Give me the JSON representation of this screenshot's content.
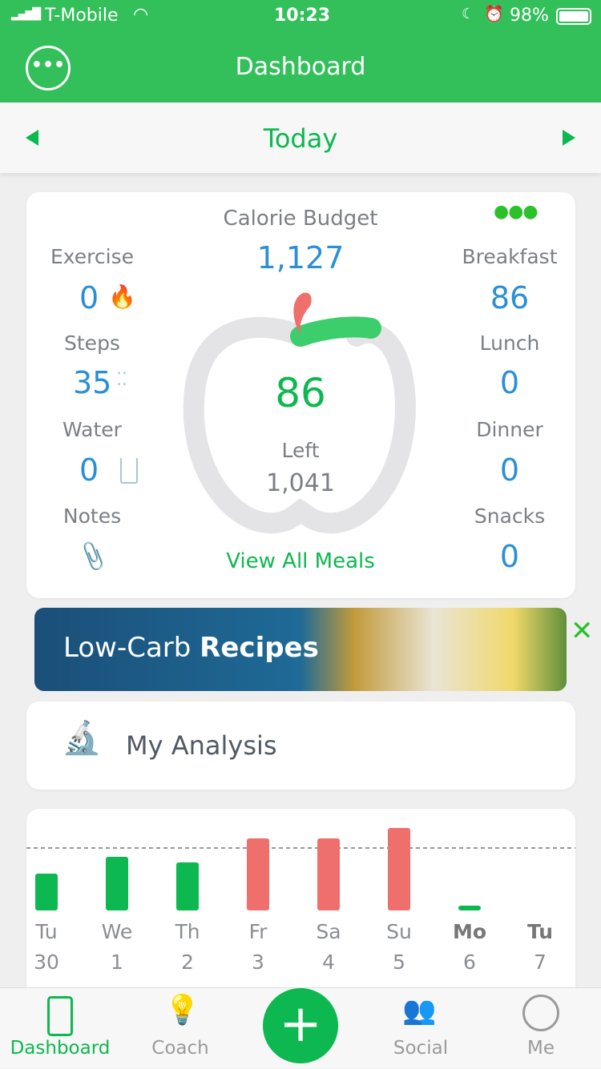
{
  "status": {
    "carrier": "T-Mobile",
    "time": "10:23",
    "battery": "98%"
  },
  "header": {
    "title": "Dashboard"
  },
  "datebar": {
    "label": "Today"
  },
  "summary": {
    "calorie_budget_label": "Calorie Budget",
    "calorie_budget": "1,127",
    "consumed": "86",
    "left_label": "Left",
    "left": "1,041",
    "view_all": "View All Meals",
    "left_items": [
      {
        "label": "Exercise",
        "value": "0",
        "icon": "flame-icon"
      },
      {
        "label": "Steps",
        "value": "35",
        "icon": "footprints-icon"
      },
      {
        "label": "Water",
        "value": "0",
        "icon": "glass-icon"
      },
      {
        "label": "Notes",
        "icon": "paperclip-icon"
      }
    ],
    "meals": [
      {
        "label": "Breakfast",
        "value": "86"
      },
      {
        "label": "Lunch",
        "value": "0"
      },
      {
        "label": "Dinner",
        "value": "0"
      },
      {
        "label": "Snacks",
        "value": "0"
      }
    ],
    "progress_fraction": 0.076
  },
  "banner": {
    "text_regular": "Low-Carb ",
    "text_bold": "Recipes"
  },
  "analysis": {
    "label": "My Analysis"
  },
  "chart_data": {
    "type": "bar",
    "budget": 1127,
    "categories": [
      "Tu",
      "We",
      "Th",
      "Fr",
      "Sa",
      "Su",
      "Mo",
      "Tu"
    ],
    "dates": [
      "30",
      "1",
      "2",
      "3",
      "4",
      "5",
      "6",
      "7"
    ],
    "values": [
      665,
      968,
      867,
      1300,
      1300,
      1488,
      86,
      0
    ],
    "colors": {
      "under": "#0cb84f",
      "over": "#ef6f6c"
    }
  },
  "tabs": [
    {
      "label": "Dashboard"
    },
    {
      "label": "Coach"
    },
    {
      "label": "Social"
    },
    {
      "label": "Me"
    }
  ],
  "colors": {
    "brand": "#33c05a",
    "accent_blue": "#2a8fd6",
    "green": "#0cb84f",
    "red": "#ef6f6c"
  }
}
